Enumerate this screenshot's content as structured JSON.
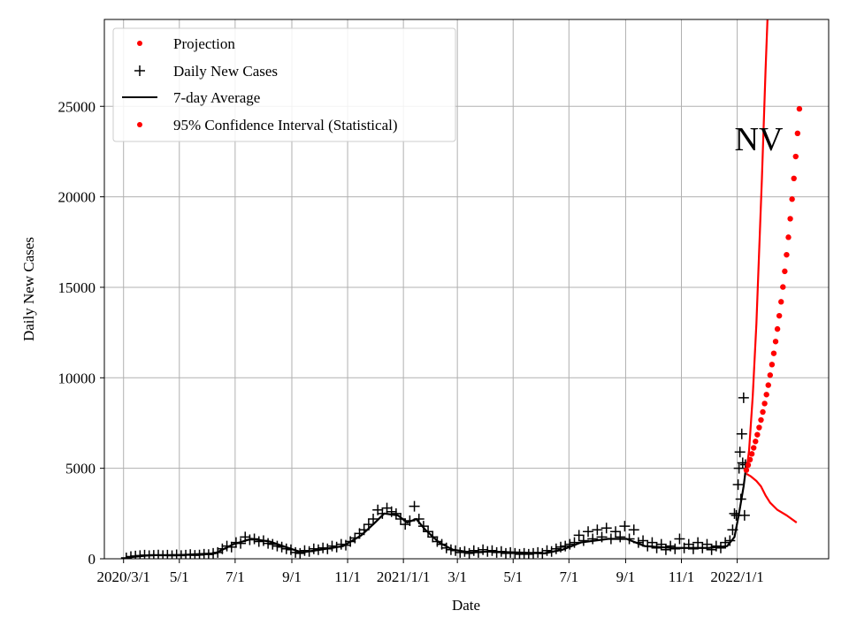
{
  "chart_data": {
    "type": "line",
    "title": "",
    "annotation": "NV",
    "xlabel": "Date",
    "ylabel": "Daily New Cases",
    "x_units": "days since 2020/3/1",
    "xlim": [
      -21,
      771
    ],
    "ylim": [
      0,
      29800
    ],
    "grid": true,
    "legend_position": "top-left",
    "x_ticks": [
      {
        "day": 0,
        "label": "2020/3/1"
      },
      {
        "day": 61,
        "label": "5/1"
      },
      {
        "day": 122,
        "label": "7/1"
      },
      {
        "day": 184,
        "label": "9/1"
      },
      {
        "day": 245,
        "label": "11/1"
      },
      {
        "day": 306,
        "label": "2021/1/1"
      },
      {
        "day": 365,
        "label": "3/1"
      },
      {
        "day": 426,
        "label": "5/1"
      },
      {
        "day": 487,
        "label": "7/1"
      },
      {
        "day": 549,
        "label": "9/1"
      },
      {
        "day": 610,
        "label": "11/1"
      },
      {
        "day": 671,
        "label": "2022/1/1"
      }
    ],
    "y_ticks": [
      0,
      5000,
      10000,
      15000,
      20000,
      25000
    ],
    "legend": [
      {
        "label": "Projection",
        "marker": "dot",
        "color": "#ff0000"
      },
      {
        "label": "Daily New Cases",
        "marker": "plus",
        "color": "#000000"
      },
      {
        "label": "7-day Average",
        "marker": "line",
        "color": "#000000"
      },
      {
        "label": "95% Confidence Interval (Statistical)",
        "marker": "dot",
        "color": "#ff0000"
      }
    ],
    "series": [
      {
        "name": "Daily New Cases",
        "color": "#000000",
        "points": [
          [
            3,
            50
          ],
          [
            8,
            120
          ],
          [
            13,
            150
          ],
          [
            18,
            180
          ],
          [
            23,
            200
          ],
          [
            28,
            170
          ],
          [
            33,
            190
          ],
          [
            38,
            210
          ],
          [
            43,
            180
          ],
          [
            48,
            200
          ],
          [
            53,
            170
          ],
          [
            58,
            220
          ],
          [
            63,
            180
          ],
          [
            68,
            200
          ],
          [
            73,
            230
          ],
          [
            78,
            190
          ],
          [
            83,
            210
          ],
          [
            88,
            250
          ],
          [
            93,
            230
          ],
          [
            98,
            300
          ],
          [
            103,
            350
          ],
          [
            108,
            550
          ],
          [
            113,
            700
          ],
          [
            118,
            650
          ],
          [
            123,
            900
          ],
          [
            128,
            850
          ],
          [
            133,
            1200
          ],
          [
            138,
            1050
          ],
          [
            143,
            1100
          ],
          [
            148,
            950
          ],
          [
            153,
            1000
          ],
          [
            158,
            850
          ],
          [
            163,
            800
          ],
          [
            168,
            700
          ],
          [
            173,
            650
          ],
          [
            178,
            550
          ],
          [
            183,
            500
          ],
          [
            188,
            350
          ],
          [
            193,
            300
          ],
          [
            198,
            450
          ],
          [
            203,
            400
          ],
          [
            208,
            550
          ],
          [
            213,
            500
          ],
          [
            218,
            600
          ],
          [
            223,
            550
          ],
          [
            228,
            700
          ],
          [
            233,
            650
          ],
          [
            238,
            800
          ],
          [
            243,
            750
          ],
          [
            248,
            950
          ],
          [
            253,
            1150
          ],
          [
            258,
            1400
          ],
          [
            263,
            1600
          ],
          [
            268,
            1900
          ],
          [
            273,
            2200
          ],
          [
            278,
            2700
          ],
          [
            283,
            2500
          ],
          [
            288,
            2800
          ],
          [
            293,
            2600
          ],
          [
            298,
            2500
          ],
          [
            303,
            2200
          ],
          [
            308,
            1900
          ],
          [
            313,
            2100
          ],
          [
            318,
            2900
          ],
          [
            323,
            2200
          ],
          [
            328,
            1800
          ],
          [
            333,
            1500
          ],
          [
            338,
            1200
          ],
          [
            343,
            950
          ],
          [
            348,
            800
          ],
          [
            353,
            600
          ],
          [
            358,
            500
          ],
          [
            363,
            450
          ],
          [
            368,
            350
          ],
          [
            373,
            400
          ],
          [
            378,
            300
          ],
          [
            383,
            450
          ],
          [
            388,
            350
          ],
          [
            393,
            500
          ],
          [
            398,
            400
          ],
          [
            403,
            450
          ],
          [
            408,
            350
          ],
          [
            413,
            400
          ],
          [
            418,
            300
          ],
          [
            423,
            350
          ],
          [
            428,
            300
          ],
          [
            433,
            250
          ],
          [
            438,
            300
          ],
          [
            443,
            250
          ],
          [
            448,
            300
          ],
          [
            453,
            350
          ],
          [
            458,
            300
          ],
          [
            463,
            450
          ],
          [
            468,
            400
          ],
          [
            473,
            550
          ],
          [
            478,
            650
          ],
          [
            483,
            700
          ],
          [
            488,
            800
          ],
          [
            493,
            900
          ],
          [
            498,
            1300
          ],
          [
            503,
            1000
          ],
          [
            508,
            1500
          ],
          [
            513,
            1100
          ],
          [
            518,
            1600
          ],
          [
            523,
            1200
          ],
          [
            528,
            1700
          ],
          [
            533,
            1100
          ],
          [
            538,
            1500
          ],
          [
            543,
            1200
          ],
          [
            548,
            1800
          ],
          [
            553,
            1100
          ],
          [
            558,
            1600
          ],
          [
            563,
            900
          ],
          [
            568,
            1000
          ],
          [
            573,
            700
          ],
          [
            578,
            900
          ],
          [
            583,
            600
          ],
          [
            588,
            800
          ],
          [
            593,
            500
          ],
          [
            598,
            700
          ],
          [
            603,
            550
          ],
          [
            608,
            1100
          ],
          [
            613,
            600
          ],
          [
            618,
            800
          ],
          [
            623,
            550
          ],
          [
            628,
            900
          ],
          [
            633,
            600
          ],
          [
            638,
            800
          ],
          [
            643,
            500
          ],
          [
            648,
            700
          ],
          [
            653,
            600
          ],
          [
            658,
            900
          ],
          [
            663,
            1000
          ],
          [
            666,
            1600
          ],
          [
            668,
            2500
          ],
          [
            670,
            2400
          ],
          [
            672,
            4100
          ],
          [
            673,
            5000
          ],
          [
            674,
            5900
          ],
          [
            675,
            3300
          ],
          [
            676,
            6900
          ],
          [
            677,
            5300
          ],
          [
            678,
            8900
          ],
          [
            679,
            2400
          ],
          [
            680,
            5200
          ]
        ]
      },
      {
        "name": "7-day Average",
        "color": "#000000",
        "points": [
          [
            0,
            0
          ],
          [
            10,
            100
          ],
          [
            30,
            200
          ],
          [
            60,
            200
          ],
          [
            100,
            300
          ],
          [
            120,
            800
          ],
          [
            140,
            1100
          ],
          [
            160,
            950
          ],
          [
            180,
            600
          ],
          [
            195,
            350
          ],
          [
            215,
            500
          ],
          [
            240,
            700
          ],
          [
            260,
            1300
          ],
          [
            275,
            2000
          ],
          [
            285,
            2500
          ],
          [
            300,
            2400
          ],
          [
            310,
            2000
          ],
          [
            320,
            2200
          ],
          [
            330,
            1600
          ],
          [
            345,
            900
          ],
          [
            360,
            500
          ],
          [
            380,
            350
          ],
          [
            400,
            400
          ],
          [
            430,
            350
          ],
          [
            460,
            300
          ],
          [
            480,
            500
          ],
          [
            500,
            900
          ],
          [
            530,
            1100
          ],
          [
            550,
            1100
          ],
          [
            570,
            700
          ],
          [
            600,
            600
          ],
          [
            640,
            600
          ],
          [
            660,
            700
          ],
          [
            668,
            1200
          ],
          [
            673,
            2500
          ],
          [
            678,
            4000
          ],
          [
            680,
            4800
          ]
        ]
      },
      {
        "name": "Projection",
        "color": "#ff0000",
        "start_day": 681,
        "step_days": 2,
        "values": [
          4900,
          5182,
          5481,
          5796,
          6130,
          6483,
          6857,
          7252,
          7669,
          8111,
          8578,
          9072,
          9595,
          10147,
          10732,
          11350,
          12004,
          12695,
          13427,
          14200,
          15018,
          15883,
          16798,
          17766,
          18789,
          19872,
          21016,
          22227,
          23507,
          24861
        ]
      },
      {
        "name": "95% CI upper",
        "color": "#ff0000",
        "points": [
          [
            681,
            4800
          ],
          [
            684,
            6000
          ],
          [
            688,
            9000
          ],
          [
            692,
            13000
          ],
          [
            695,
            17000
          ],
          [
            698,
            21000
          ],
          [
            702,
            27000
          ],
          [
            705,
            31000
          ]
        ]
      },
      {
        "name": "95% CI lower",
        "color": "#ff0000",
        "points": [
          [
            681,
            4700
          ],
          [
            686,
            4550
          ],
          [
            692,
            4300
          ],
          [
            697,
            4000
          ],
          [
            702,
            3500
          ],
          [
            707,
            3100
          ],
          [
            715,
            2700
          ],
          [
            725,
            2400
          ],
          [
            736,
            2000
          ]
        ]
      }
    ]
  }
}
